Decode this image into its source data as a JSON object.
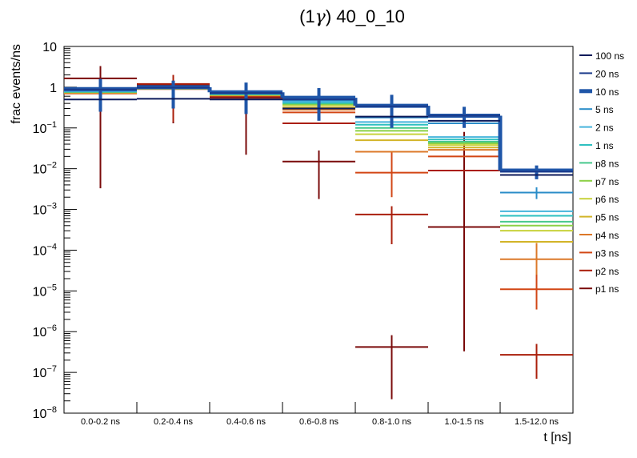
{
  "chart_data": {
    "type": "step-histogram",
    "title_prefix": "(1",
    "title_gamma": "γ",
    "title_suffix": ") 40_0_10",
    "xlabel": "t [ns]",
    "ylabel": "frac events/ns",
    "y_scale": "log",
    "ylim": [
      1e-08,
      10
    ],
    "y_ticks": [
      {
        "base": "10",
        "exp": "",
        "value": 10
      },
      {
        "base": "1",
        "exp": "",
        "value": 1
      },
      {
        "base": "10",
        "exp": "−1",
        "value": 0.1
      },
      {
        "base": "10",
        "exp": "−2",
        "value": 0.01
      },
      {
        "base": "10",
        "exp": "−3",
        "value": 0.001
      },
      {
        "base": "10",
        "exp": "−4",
        "value": 0.0001
      },
      {
        "base": "10",
        "exp": "−5",
        "value": 1e-05
      },
      {
        "base": "10",
        "exp": "−6",
        "value": 1e-06
      },
      {
        "base": "10",
        "exp": "−7",
        "value": 1e-07
      },
      {
        "base": "10",
        "exp": "−8",
        "value": 1e-08
      }
    ],
    "categories": [
      "0.0-0.2 ns",
      "0.2-0.4 ns",
      "0.4-0.6 ns",
      "0.6-0.8 ns",
      "0.8-1.0 ns",
      "1.0-1.5 ns",
      "1.5-12.0 ns"
    ],
    "series": [
      {
        "name": "100 ns",
        "color": "#0c1a5a",
        "width": 2,
        "values": [
          0.5,
          0.52,
          0.5,
          0.3,
          0.19,
          0.15,
          0.007
        ],
        "err_lo": [
          null,
          null,
          null,
          null,
          null,
          null,
          null
        ],
        "err_hi": [
          null,
          null,
          null,
          null,
          null,
          null,
          null
        ]
      },
      {
        "name": "20 ns",
        "color": "#1a3a8a",
        "width": 2,
        "values": [
          0.88,
          0.98,
          0.72,
          0.5,
          0.34,
          0.2,
          0.0085
        ],
        "err_lo": [
          null,
          null,
          null,
          null,
          null,
          null,
          null
        ],
        "err_hi": [
          null,
          null,
          null,
          null,
          null,
          null,
          null
        ]
      },
      {
        "name": "10 ns",
        "color": "#1f56a8",
        "width": 5,
        "values": [
          0.9,
          1.0,
          0.75,
          0.55,
          0.35,
          0.2,
          0.009
        ],
        "err_lo": [
          0.25,
          0.3,
          0.22,
          0.15,
          0.1,
          0.1,
          0.0055
        ],
        "err_hi": [
          1.6,
          1.45,
          1.3,
          0.95,
          0.65,
          0.33,
          0.012
        ]
      },
      {
        "name": "5 ns",
        "color": "#2a8cc8",
        "width": 2,
        "values": [
          0.82,
          0.96,
          0.7,
          0.48,
          0.18,
          0.13,
          0.0026
        ],
        "err_lo": [
          null,
          null,
          null,
          null,
          null,
          null,
          0.0018
        ],
        "err_hi": [
          null,
          null,
          null,
          null,
          null,
          null,
          0.0035
        ]
      },
      {
        "name": "2 ns",
        "color": "#46b4dc",
        "width": 2,
        "values": [
          0.8,
          0.95,
          0.7,
          0.44,
          0.14,
          0.06,
          0.0009
        ],
        "err_lo": [
          null,
          null,
          null,
          null,
          null,
          null,
          null
        ],
        "err_hi": [
          null,
          null,
          null,
          null,
          null,
          null,
          null
        ]
      },
      {
        "name": "1 ns",
        "color": "#2ec0c0",
        "width": 2,
        "values": [
          0.78,
          0.94,
          0.68,
          0.42,
          0.12,
          0.052,
          0.0007
        ],
        "err_lo": [
          null,
          null,
          null,
          null,
          null,
          null,
          null
        ],
        "err_hi": [
          null,
          null,
          null,
          null,
          null,
          null,
          null
        ]
      },
      {
        "name": "p8 ns",
        "color": "#46c88c",
        "width": 2,
        "values": [
          0.77,
          0.93,
          0.67,
          0.4,
          0.1,
          0.046,
          0.0005
        ],
        "err_lo": [
          null,
          null,
          null,
          null,
          null,
          null,
          null
        ],
        "err_hi": [
          null,
          null,
          null,
          null,
          null,
          null,
          null
        ]
      },
      {
        "name": "p7 ns",
        "color": "#8cd046",
        "width": 2,
        "values": [
          0.76,
          0.93,
          0.66,
          0.38,
          0.085,
          0.042,
          0.0004
        ],
        "err_lo": [
          null,
          null,
          null,
          null,
          null,
          null,
          null
        ],
        "err_hi": [
          null,
          null,
          null,
          null,
          null,
          null,
          null
        ]
      },
      {
        "name": "p6 ns",
        "color": "#c8d23c",
        "width": 2,
        "values": [
          0.75,
          0.92,
          0.65,
          0.36,
          0.07,
          0.038,
          0.0003
        ],
        "err_lo": [
          null,
          null,
          null,
          null,
          null,
          null,
          null
        ],
        "err_hi": [
          null,
          null,
          null,
          null,
          null,
          null,
          null
        ]
      },
      {
        "name": "p5 ns",
        "color": "#d2b428",
        "width": 2,
        "values": [
          0.74,
          0.92,
          0.64,
          0.32,
          0.05,
          0.033,
          0.00016
        ],
        "err_lo": [
          null,
          null,
          null,
          null,
          null,
          null,
          null
        ],
        "err_hi": [
          null,
          null,
          null,
          null,
          null,
          null,
          null
        ]
      },
      {
        "name": "p4 ns",
        "color": "#dc7828",
        "width": 2,
        "values": [
          0.72,
          0.91,
          0.63,
          0.28,
          0.026,
          0.029,
          6e-05
        ],
        "err_lo": [
          null,
          null,
          null,
          null,
          null,
          null,
          2.5e-05
        ],
        "err_hi": [
          null,
          null,
          null,
          null,
          null,
          null,
          0.00015
        ]
      },
      {
        "name": "p3 ns",
        "color": "#d24614",
        "width": 2,
        "values": [
          0.7,
          0.9,
          0.62,
          0.24,
          0.008,
          0.02,
          1.1e-05
        ],
        "err_lo": [
          null,
          null,
          null,
          null,
          0.002,
          null,
          3.5e-06
        ],
        "err_hi": [
          null,
          null,
          null,
          null,
          0.025,
          null,
          3e-05
        ]
      },
      {
        "name": "p2 ns",
        "color": "#aa1e0a",
        "width": 2,
        "values": [
          0.72,
          1.2,
          0.6,
          0.13,
          0.00075,
          0.009,
          2.7e-07
        ],
        "err_lo": [
          null,
          0.14,
          null,
          null,
          0.00014,
          null,
          7e-08
        ],
        "err_hi": [
          null,
          2.0,
          null,
          null,
          0.0012,
          null,
          5e-07
        ]
      },
      {
        "name": "p1 ns",
        "color": "#7a0a0a",
        "width": 2,
        "values": [
          1.65,
          1.15,
          0.55,
          0.015,
          4.2e-07,
          0.00037,
          null
        ],
        "err_lo": [
          0.0033,
          0.13,
          0.022,
          0.0018,
          2.2e-08,
          3.3e-07,
          null
        ],
        "err_hi": [
          3.3,
          1.9,
          1.05,
          0.028,
          8.2e-07,
          0.08,
          null
        ]
      }
    ]
  }
}
